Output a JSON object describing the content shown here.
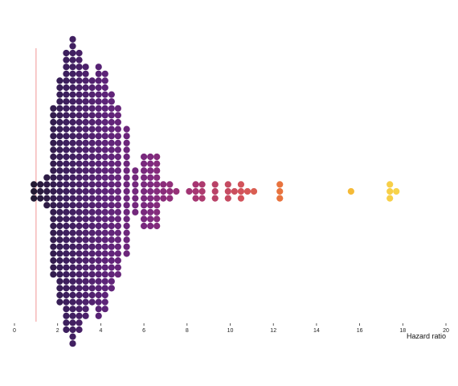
{
  "chart_data": {
    "type": "scatter",
    "variant": "beeswarm",
    "title": "",
    "xlabel": "Hazard ratio",
    "ylabel": "",
    "xlim": [
      0,
      20
    ],
    "x_ticks": [
      "0",
      "2",
      "4",
      "6",
      "8",
      "10",
      "12",
      "14",
      "16",
      "18",
      "20"
    ],
    "reference_line": {
      "x": 1,
      "color": "#f4a6a6"
    },
    "color_scale": [
      "#231a33",
      "#3b1f5c",
      "#5c2378",
      "#7d2a7e",
      "#a63572",
      "#d4555a",
      "#f07e33",
      "#f5b735",
      "#f7d44c"
    ],
    "grid": false,
    "legend": "none",
    "columns": [
      {
        "x": 0.9,
        "n": 3
      },
      {
        "x": 1.2,
        "n": 3
      },
      {
        "x": 1.5,
        "n": 5
      },
      {
        "x": 1.8,
        "n": 25
      },
      {
        "x": 2.1,
        "n": 33
      },
      {
        "x": 2.4,
        "n": 41
      },
      {
        "x": 2.7,
        "n": 45
      },
      {
        "x": 3.0,
        "n": 41
      },
      {
        "x": 3.3,
        "n": 37
      },
      {
        "x": 3.6,
        "n": 33
      },
      {
        "x": 3.9,
        "n": 37
      },
      {
        "x": 4.2,
        "n": 35
      },
      {
        "x": 4.5,
        "n": 29
      },
      {
        "x": 4.8,
        "n": 25
      },
      {
        "x": 5.2,
        "n": 19
      },
      {
        "x": 5.6,
        "n": 7
      },
      {
        "x": 6.0,
        "n": 11
      },
      {
        "x": 6.3,
        "n": 11
      },
      {
        "x": 6.6,
        "n": 11
      },
      {
        "x": 6.9,
        "n": 3
      },
      {
        "x": 7.2,
        "n": 3
      },
      {
        "x": 7.5,
        "n": 1
      },
      {
        "x": 8.1,
        "n": 1
      },
      {
        "x": 8.4,
        "n": 3
      },
      {
        "x": 8.7,
        "n": 3
      },
      {
        "x": 9.3,
        "n": 3
      },
      {
        "x": 9.9,
        "n": 3
      },
      {
        "x": 10.2,
        "n": 1
      },
      {
        "x": 10.5,
        "n": 3
      },
      {
        "x": 10.8,
        "n": 1
      },
      {
        "x": 11.1,
        "n": 1
      },
      {
        "x": 12.3,
        "n": 3
      },
      {
        "x": 15.6,
        "n": 1
      },
      {
        "x": 17.4,
        "n": 3
      },
      {
        "x": 17.7,
        "n": 1
      }
    ]
  }
}
